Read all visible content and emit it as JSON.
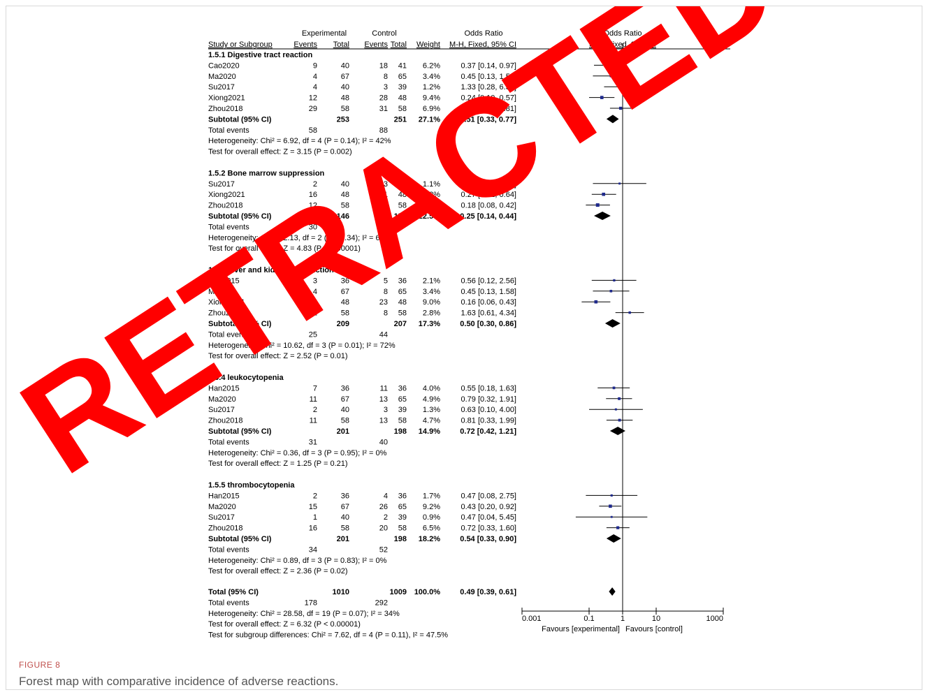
{
  "figure": {
    "label": "FIGURE 8",
    "caption": "Forest map with comparative incidence of adverse reactions."
  },
  "watermark": "RETRACTED",
  "colors": {
    "text": "#000000",
    "point": "#1f2a8c",
    "diamond": "#000000",
    "watermark": "#ff0000"
  },
  "chart_data": {
    "type": "forest",
    "header": {
      "group1": "Experimental",
      "group2": "Control",
      "study_col": "Study or Subgroup",
      "events": "Events",
      "total": "Total",
      "weight": "Weight",
      "effect_col_title": "Odds Ratio",
      "effect_col_method": "M-H, Fixed, 95% CI",
      "plot_title": "Odds Ratio",
      "plot_method": "M-H, Fixed, 95% CI"
    },
    "x_axis": {
      "scale": "log",
      "range": [
        0.001,
        1000
      ],
      "ticks": [
        "0.001",
        "0.1",
        "1",
        "10",
        "1000"
      ],
      "left_label": "Favours [experimental]",
      "right_label": "Favours [control]"
    },
    "subgroups": [
      {
        "title": "1.5.1 Digestive tract reaction",
        "studies": [
          {
            "name": "Cao2020",
            "e_events": "9",
            "e_total": "40",
            "c_events": "18",
            "c_total": "41",
            "weight": "6.2%",
            "ci_text": "0.37 [0.14, 0.97]",
            "or": 0.37,
            "lo": 0.14,
            "hi": 0.97
          },
          {
            "name": "Ma2020",
            "e_events": "4",
            "e_total": "67",
            "c_events": "8",
            "c_total": "65",
            "weight": "3.4%",
            "ci_text": "0.45 [0.13, 1.58]",
            "or": 0.45,
            "lo": 0.13,
            "hi": 1.58
          },
          {
            "name": "Su2017",
            "e_events": "4",
            "e_total": "40",
            "c_events": "3",
            "c_total": "39",
            "weight": "1.2%",
            "ci_text": "1.33 [0.28, 6.39]",
            "or": 1.33,
            "lo": 0.28,
            "hi": 6.39
          },
          {
            "name": "Xiong2021",
            "e_events": "12",
            "e_total": "48",
            "c_events": "28",
            "c_total": "48",
            "weight": "9.4%",
            "ci_text": "0.24 [0.10, 0.57]",
            "or": 0.24,
            "lo": 0.1,
            "hi": 0.57
          },
          {
            "name": "Zhou2018",
            "e_events": "29",
            "e_total": "58",
            "c_events": "31",
            "c_total": "58",
            "weight": "6.9%",
            "ci_text": "0.87 [0.42, 1.81]",
            "or": 0.87,
            "lo": 0.42,
            "hi": 1.81
          }
        ],
        "subtotal": {
          "label": "Subtotal (95% CI)",
          "e_total": "253",
          "c_total": "251",
          "weight": "27.1%",
          "ci_text": "0.51 [0.33, 0.77]",
          "or": 0.51,
          "lo": 0.33,
          "hi": 0.77
        },
        "total_events": {
          "label": "Total events",
          "e": "58",
          "c": "88"
        },
        "heterogeneity": "Heterogeneity: Chi² = 6.92, df = 4 (P = 0.14); I² = 42%",
        "overall": "Test for overall effect: Z = 3.15 (P = 0.002)"
      },
      {
        "title": "1.5.2 Bone marrow suppression",
        "studies": [
          {
            "name": "Su2017",
            "e_events": "2",
            "e_total": "40",
            "c_events": "3",
            "c_total": "49",
            "weight": "1.1%",
            "ci_text": "0.81 [0.13, 5.08]",
            "or": 0.81,
            "lo": 0.13,
            "hi": 5.08
          },
          {
            "name": "Xiong2021",
            "e_events": "16",
            "e_total": "48",
            "c_events": "31",
            "c_total": "48",
            "weight": "9.2%",
            "ci_text": "0.27 [0.12, 0.64]",
            "or": 0.27,
            "lo": 0.12,
            "hi": 0.64
          },
          {
            "name": "Zhou2018",
            "e_events": "12",
            "e_total": "58",
            "c_events": "34",
            "c_total": "58",
            "weight": "12.1%",
            "ci_text": "0.18 [0.08, 0.42]",
            "or": 0.18,
            "lo": 0.08,
            "hi": 0.42
          }
        ],
        "subtotal": {
          "label": "Subtotal (95% CI)",
          "e_total": "146",
          "c_total": "155",
          "weight": "22.5%",
          "ci_text": "0.25 [0.14, 0.44]",
          "or": 0.25,
          "lo": 0.14,
          "hi": 0.44
        },
        "total_events": {
          "label": "Total events",
          "e": "30",
          "c": "68"
        },
        "heterogeneity": "Heterogeneity: Chi² = 2.13, df = 2 (P = 0.34); I² = 6%",
        "overall": "Test for overall effect: Z = 4.83 (P < 0.00001)"
      },
      {
        "title": "1.5.3 Liver and kidney dysfunction",
        "studies": [
          {
            "name": "Han2015",
            "e_events": "3",
            "e_total": "36",
            "c_events": "5",
            "c_total": "36",
            "weight": "2.1%",
            "ci_text": "0.56 [0.12, 2.56]",
            "or": 0.56,
            "lo": 0.12,
            "hi": 2.56
          },
          {
            "name": "Ma2020",
            "e_events": "4",
            "e_total": "67",
            "c_events": "8",
            "c_total": "65",
            "weight": "3.4%",
            "ci_text": "0.45 [0.13, 1.58]",
            "or": 0.45,
            "lo": 0.13,
            "hi": 1.58
          },
          {
            "name": "Xiong2021",
            "e_events": "6",
            "e_total": "48",
            "c_events": "23",
            "c_total": "48",
            "weight": "9.0%",
            "ci_text": "0.16 [0.06, 0.43]",
            "or": 0.16,
            "lo": 0.06,
            "hi": 0.43
          },
          {
            "name": "Zhou2018",
            "e_events": "12",
            "e_total": "58",
            "c_events": "8",
            "c_total": "58",
            "weight": "2.8%",
            "ci_text": "1.63 [0.61, 4.34]",
            "or": 1.63,
            "lo": 0.61,
            "hi": 4.34
          }
        ],
        "subtotal": {
          "label": "Subtotal (95% CI)",
          "e_total": "209",
          "c_total": "207",
          "weight": "17.3%",
          "ci_text": "0.50 [0.30, 0.86]",
          "or": 0.5,
          "lo": 0.3,
          "hi": 0.86
        },
        "total_events": {
          "label": "Total events",
          "e": "25",
          "c": "44"
        },
        "heterogeneity": "Heterogeneity: Chi² = 10.62, df = 3 (P = 0.01); I² = 72%",
        "overall": "Test for overall effect: Z = 2.52 (P = 0.01)"
      },
      {
        "title": "1.5.4 leukocytopenia",
        "studies": [
          {
            "name": "Han2015",
            "e_events": "7",
            "e_total": "36",
            "c_events": "11",
            "c_total": "36",
            "weight": "4.0%",
            "ci_text": "0.55 [0.18, 1.63]",
            "or": 0.55,
            "lo": 0.18,
            "hi": 1.63
          },
          {
            "name": "Ma2020",
            "e_events": "11",
            "e_total": "67",
            "c_events": "13",
            "c_total": "65",
            "weight": "4.9%",
            "ci_text": "0.79 [0.32, 1.91]",
            "or": 0.79,
            "lo": 0.32,
            "hi": 1.91
          },
          {
            "name": "Su2017",
            "e_events": "2",
            "e_total": "40",
            "c_events": "3",
            "c_total": "39",
            "weight": "1.3%",
            "ci_text": "0.63 [0.10, 4.00]",
            "or": 0.63,
            "lo": 0.1,
            "hi": 4.0
          },
          {
            "name": "Zhou2018",
            "e_events": "11",
            "e_total": "58",
            "c_events": "13",
            "c_total": "58",
            "weight": "4.7%",
            "ci_text": "0.81 [0.33, 1.99]",
            "or": 0.81,
            "lo": 0.33,
            "hi": 1.99
          }
        ],
        "subtotal": {
          "label": "Subtotal (95% CI)",
          "e_total": "201",
          "c_total": "198",
          "weight": "14.9%",
          "ci_text": "0.72 [0.42, 1.21]",
          "or": 0.72,
          "lo": 0.42,
          "hi": 1.21
        },
        "total_events": {
          "label": "Total events",
          "e": "31",
          "c": "40"
        },
        "heterogeneity": "Heterogeneity: Chi² = 0.36, df = 3 (P = 0.95); I² = 0%",
        "overall": "Test for overall effect: Z = 1.25 (P = 0.21)"
      },
      {
        "title": "1.5.5 thrombocytopenia",
        "studies": [
          {
            "name": "Han2015",
            "e_events": "2",
            "e_total": "36",
            "c_events": "4",
            "c_total": "36",
            "weight": "1.7%",
            "ci_text": "0.47 [0.08, 2.75]",
            "or": 0.47,
            "lo": 0.08,
            "hi": 2.75
          },
          {
            "name": "Ma2020",
            "e_events": "15",
            "e_total": "67",
            "c_events": "26",
            "c_total": "65",
            "weight": "9.2%",
            "ci_text": "0.43 [0.20, 0.92]",
            "or": 0.43,
            "lo": 0.2,
            "hi": 0.92
          },
          {
            "name": "Su2017",
            "e_events": "1",
            "e_total": "40",
            "c_events": "2",
            "c_total": "39",
            "weight": "0.9%",
            "ci_text": "0.47 [0.04, 5.45]",
            "or": 0.47,
            "lo": 0.04,
            "hi": 5.45
          },
          {
            "name": "Zhou2018",
            "e_events": "16",
            "e_total": "58",
            "c_events": "20",
            "c_total": "58",
            "weight": "6.5%",
            "ci_text": "0.72 [0.33, 1.60]",
            "or": 0.72,
            "lo": 0.33,
            "hi": 1.6
          }
        ],
        "subtotal": {
          "label": "Subtotal (95% CI)",
          "e_total": "201",
          "c_total": "198",
          "weight": "18.2%",
          "ci_text": "0.54 [0.33, 0.90]",
          "or": 0.54,
          "lo": 0.33,
          "hi": 0.9
        },
        "total_events": {
          "label": "Total events",
          "e": "34",
          "c": "52"
        },
        "heterogeneity": "Heterogeneity: Chi² = 0.89, df = 3 (P = 0.83); I² = 0%",
        "overall": "Test for overall effect: Z = 2.36 (P = 0.02)"
      }
    ],
    "overall": {
      "label": "Total (95% CI)",
      "e_total": "1010",
      "c_total": "1009",
      "weight": "100.0%",
      "ci_text": "0.49 [0.39, 0.61]",
      "or": 0.49,
      "lo": 0.39,
      "hi": 0.61,
      "total_events": {
        "label": "Total events",
        "e": "178",
        "c": "292"
      },
      "heterogeneity": "Heterogeneity: Chi² = 28.58, df = 19 (P = 0.07); I² = 34%",
      "overall_effect": "Test for overall effect: Z = 6.32 (P < 0.00001)",
      "subgroup_diff": "Test for subgroup differences: Chi² = 7.62, df = 4 (P = 0.11), I² = 47.5%"
    }
  }
}
